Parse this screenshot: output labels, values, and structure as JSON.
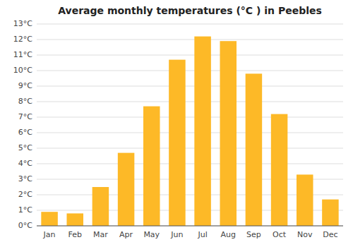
{
  "chart_data": {
    "type": "bar",
    "title": "Average monthly temperatures (°C ) in Peebles",
    "categories": [
      "Jan",
      "Feb",
      "Mar",
      "Apr",
      "May",
      "Jun",
      "Jul",
      "Aug",
      "Sep",
      "Oct",
      "Nov",
      "Dec"
    ],
    "values": [
      0.9,
      0.8,
      2.5,
      4.7,
      7.7,
      10.7,
      12.2,
      11.9,
      9.8,
      7.2,
      3.3,
      1.7
    ],
    "color": "#FDB927",
    "ylim": [
      0,
      13
    ],
    "yticks": [
      {
        "value": 0,
        "label": "0°C"
      },
      {
        "value": 1,
        "label": "1°C"
      },
      {
        "value": 2,
        "label": "2°C"
      },
      {
        "value": 3,
        "label": "3°C"
      },
      {
        "value": 4,
        "label": "4°C"
      },
      {
        "value": 5,
        "label": "5°C"
      },
      {
        "value": 6,
        "label": "6°C"
      },
      {
        "value": 7,
        "label": "7°C"
      },
      {
        "value": 8,
        "label": "8°C"
      },
      {
        "value": 9,
        "label": "9°C"
      },
      {
        "value": 10,
        "label": "10°C"
      },
      {
        "value": 11,
        "label": "11°C"
      },
      {
        "value": 12,
        "label": "12°C"
      },
      {
        "value": 13,
        "label": "13°C"
      }
    ],
    "grid": true
  }
}
